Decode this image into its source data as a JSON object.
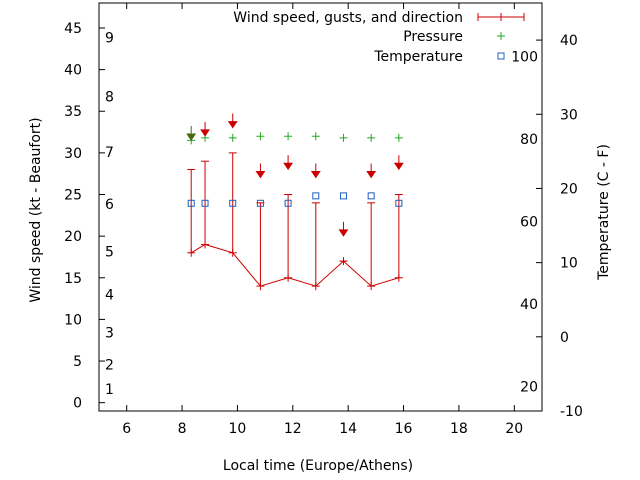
{
  "chart_data": {
    "type": "line",
    "xlabel": "Local time (Europe/Athens)",
    "ylabel": "Wind speed (kt - Beaufort)",
    "y2label": "Temperature (C - F)",
    "xlim": [
      5,
      21
    ],
    "ylim": [
      -1,
      48
    ],
    "y2lim": [
      -10,
      45
    ],
    "x_ticks": [
      "6",
      "8",
      "10",
      "12",
      "14",
      "16",
      "18",
      "20"
    ],
    "y_ticks": [
      "0",
      "5",
      "10",
      "15",
      "20",
      "25",
      "30",
      "35",
      "40",
      "45"
    ],
    "y2_ticks_celsius": [
      "-10",
      "0",
      "10",
      "20",
      "30",
      "40"
    ],
    "y2_ticks_fahrenheit": [
      "20",
      "40",
      "60",
      "80",
      "100"
    ],
    "beaufort_labels": [
      "1",
      "2",
      "3",
      "4",
      "5",
      "6",
      "7",
      "8",
      "9"
    ],
    "legend": {
      "position": "top-right",
      "wind": "Wind speed, gusts, and direction",
      "pressure": "Pressure",
      "temperature": "Temperature"
    },
    "wind": {
      "x": [
        8.33,
        8.83,
        9.83,
        10.83,
        11.83,
        12.83,
        13.83,
        14.83,
        15.83
      ],
      "speed": [
        18,
        19,
        18,
        14,
        15,
        14,
        17,
        14,
        15
      ],
      "gust": [
        28,
        29,
        30,
        24,
        25,
        24,
        17,
        24,
        25
      ]
    },
    "direction_arrows": {
      "x": [
        8.33,
        8.83,
        9.83,
        10.83,
        11.83,
        12.83,
        13.83,
        14.83,
        15.83
      ],
      "y": [
        32.5,
        33,
        34,
        28,
        29,
        28,
        21,
        28,
        29
      ],
      "colors": [
        "#4a6a10",
        "#cc0000",
        "#cc0000",
        "#cc0000",
        "#cc0000",
        "#cc0000",
        "#cc0000",
        "#cc0000",
        "#cc0000"
      ]
    },
    "pressure": {
      "x": [
        8.33,
        8.83,
        9.83,
        10.83,
        11.83,
        12.83,
        13.83,
        14.83,
        15.83
      ],
      "y": [
        31.5,
        31.8,
        31.8,
        32.0,
        32.0,
        32.0,
        31.8,
        31.8,
        31.8
      ]
    },
    "temperature": {
      "x": [
        8.33,
        8.83,
        9.83,
        10.83,
        11.83,
        12.83,
        13.83,
        14.83,
        15.83
      ],
      "y_celsius": [
        18,
        18,
        18,
        18,
        18,
        19,
        19,
        19,
        18
      ]
    },
    "colors": {
      "wind": "#cc0000",
      "pressure": "#22aa22",
      "temperature": "#1f5fbf"
    }
  }
}
